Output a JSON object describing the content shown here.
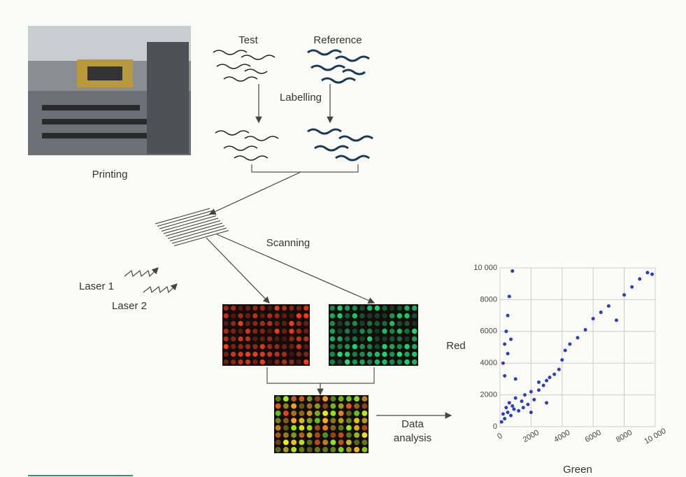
{
  "photo_caption": "Printing",
  "samples": {
    "test": "Test",
    "reference": "Reference"
  },
  "step_labelling": "Labelling",
  "step_scanning": "Scanning",
  "lasers": [
    "Laser 1",
    "Laser 2"
  ],
  "data_analysis": [
    "Data",
    "analysis"
  ],
  "chart_data": {
    "type": "scatter",
    "x_label": "Green",
    "y_label": "Red",
    "color": "#2b3fc4",
    "grid": true,
    "xlim": [
      0,
      10000
    ],
    "ylim": [
      0,
      10000
    ],
    "xticks": [
      0,
      2000,
      4000,
      6000,
      8000,
      {
        "value": 10000,
        "label": "10 000"
      }
    ],
    "yticks": [
      0,
      2000,
      4000,
      6000,
      8000,
      {
        "value": 10000,
        "label": "10 000"
      }
    ],
    "x": [
      100,
      200,
      300,
      400,
      500,
      600,
      700,
      800,
      900,
      1000,
      1200,
      1400,
      1600,
      1800,
      2000,
      2200,
      2500,
      2800,
      3000,
      3200,
      3500,
      3800,
      4000,
      4200,
      4500,
      5000,
      5500,
      6000,
      6500,
      7000,
      7500,
      8000,
      8500,
      9000,
      9500,
      9800,
      200,
      300,
      400,
      500,
      600,
      800,
      300,
      500,
      700,
      1000,
      1500,
      2000,
      2500,
      3000
    ],
    "y": [
      300,
      800,
      500,
      1200,
      900,
      1500,
      700,
      1300,
      1100,
      1800,
      1000,
      1600,
      2000,
      1400,
      2200,
      1700,
      2300,
      2600,
      2900,
      3100,
      3300,
      3600,
      4200,
      4800,
      5200,
      5600,
      6100,
      6800,
      7200,
      7600,
      6700,
      8300,
      8800,
      9300,
      9700,
      9600,
      4000,
      5200,
      6000,
      7000,
      8200,
      9800,
      3200,
      4600,
      5500,
      3000,
      1200,
      900,
      2800,
      1500
    ]
  }
}
